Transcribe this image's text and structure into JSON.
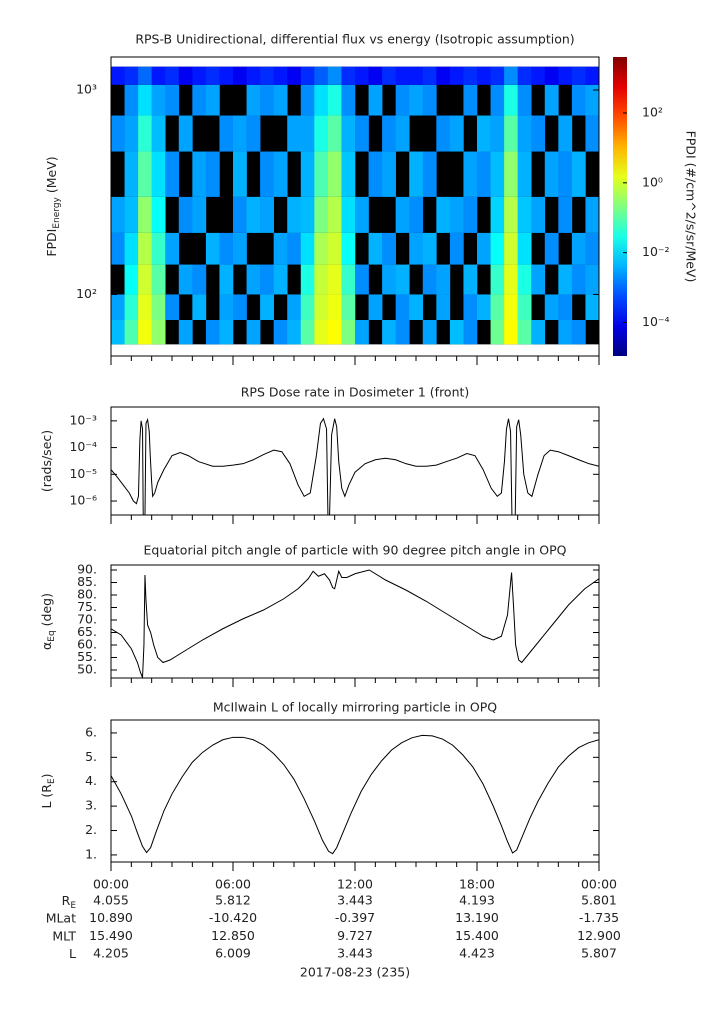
{
  "chart_data": [
    {
      "type": "heatmap",
      "title": "RPS-B  Unidirectional, differential flux vs energy (Isotropic assumption)",
      "ylabel": {
        "text": "FPDI",
        "sub": "Energy",
        "after": " (MeV)"
      },
      "xlim": [
        0,
        24
      ],
      "xticks": [
        0,
        6,
        12,
        18,
        24
      ],
      "xminorticks": [
        1,
        2,
        3,
        4,
        5,
        7,
        8,
        9,
        10,
        11,
        13,
        14,
        15,
        16,
        17,
        19,
        20,
        21,
        22,
        23
      ],
      "ylim": [
        50,
        1450
      ],
      "ylog": true,
      "yticks": [
        {
          "value": 100,
          "label": "10²"
        },
        {
          "value": 1000,
          "label": "10³"
        }
      ],
      "x": [
        0,
        0.667,
        1.333,
        2,
        2.667,
        3.333,
        4,
        4.667,
        5.333,
        6,
        6.667,
        7.333,
        8,
        8.667,
        9.333,
        10,
        10.667,
        11.333,
        12,
        12.667,
        13.333,
        14,
        14.667,
        15.333,
        16,
        16.667,
        17.333,
        18,
        18.667,
        19.333,
        20,
        20.667,
        21.333,
        22,
        22.667,
        23.333,
        24
      ],
      "y": [
        57,
        75,
        100,
        140,
        200,
        300,
        500,
        750,
        1060,
        1300
      ],
      "z": [
        [
          0.005,
          0.08,
          2,
          0.3,
          null,
          0.003,
          null,
          0.002,
          0.004,
          null,
          0.003,
          null,
          0.002,
          0.004,
          0.1,
          1.5,
          2.5,
          0.2,
          0.003,
          null,
          0.004,
          0.002,
          null,
          0.003,
          null,
          0.005,
          0.002,
          null,
          0.15,
          2.5,
          0.1,
          0.004,
          null,
          0.003,
          0.002,
          null
        ],
        [
          0.003,
          0.04,
          1.5,
          0.2,
          0.002,
          null,
          0.004,
          null,
          0.003,
          0.002,
          null,
          0.004,
          null,
          0.003,
          0.06,
          1,
          1.8,
          0.1,
          null,
          0.003,
          null,
          0.002,
          0.004,
          null,
          0.003,
          null,
          0.002,
          0.004,
          0.1,
          2,
          0.06,
          null,
          0.003,
          0.002,
          null,
          0.004
        ],
        [
          null,
          0.02,
          1,
          0.1,
          null,
          0.003,
          0.002,
          null,
          0.004,
          null,
          0.003,
          0.002,
          0.004,
          null,
          0.03,
          0.8,
          1.5,
          0.05,
          0.002,
          null,
          0.003,
          0.004,
          null,
          0.002,
          0.003,
          null,
          0.004,
          null,
          0.05,
          1.5,
          0.03,
          0.003,
          null,
          0.004,
          0.002,
          0.003
        ],
        [
          0.002,
          0.01,
          0.6,
          0.05,
          0.003,
          null,
          null,
          0.004,
          0.002,
          0.003,
          null,
          null,
          0.003,
          0.002,
          0.01,
          0.5,
          1,
          0.02,
          null,
          0.004,
          0.002,
          null,
          0.003,
          0.004,
          null,
          0.002,
          null,
          0.003,
          0.02,
          1,
          0.01,
          null,
          0.002,
          null,
          0.003,
          0.002
        ],
        [
          0.003,
          0.005,
          0.3,
          0.02,
          null,
          0.002,
          0.003,
          null,
          null,
          0.002,
          0.004,
          0.003,
          null,
          0.004,
          0.005,
          0.2,
          0.6,
          0.01,
          0.003,
          null,
          null,
          0.003,
          0.002,
          null,
          0.004,
          0.003,
          0.002,
          null,
          0.008,
          0.6,
          0.006,
          0.003,
          null,
          0.002,
          null,
          0.003
        ],
        [
          null,
          0.004,
          0.1,
          0.01,
          0.002,
          null,
          0.003,
          0.002,
          null,
          0.004,
          null,
          0.002,
          0.003,
          null,
          0.004,
          0.08,
          0.3,
          0.006,
          null,
          0.002,
          0.003,
          null,
          0.004,
          0.002,
          null,
          null,
          0.003,
          0.002,
          0.005,
          0.3,
          0.004,
          null,
          0.003,
          0.002,
          0.004,
          null
        ],
        [
          0.002,
          0.003,
          0.04,
          0.005,
          null,
          0.003,
          null,
          null,
          0.002,
          0.003,
          0.002,
          null,
          null,
          0.003,
          0.003,
          0.03,
          0.1,
          0.004,
          0.002,
          null,
          0.002,
          0.003,
          null,
          null,
          0.002,
          0.003,
          null,
          0.004,
          0.003,
          0.1,
          0.003,
          0.002,
          null,
          0.003,
          null,
          0.002
        ],
        [
          null,
          0.002,
          0.01,
          0.003,
          0.002,
          null,
          0.002,
          0.003,
          null,
          null,
          0.003,
          0.002,
          0.003,
          null,
          0.002,
          0.01,
          0.03,
          0.002,
          null,
          0.003,
          null,
          0.002,
          0.003,
          0.002,
          null,
          null,
          0.002,
          null,
          0.002,
          0.03,
          0.002,
          null,
          0.003,
          null,
          0.002,
          0.003
        ],
        [
          0.0002,
          0.0003,
          0.001,
          0.0002,
          0.0003,
          0.0001,
          0.0002,
          0.0003,
          0.0002,
          0.0001,
          0.0002,
          0.0003,
          0.0002,
          0.0001,
          0.0003,
          0.0008,
          0.002,
          0.0003,
          0.0002,
          0.0001,
          0.0003,
          0.0002,
          0.0002,
          0.0003,
          0.0001,
          0.0002,
          0.0003,
          0.0002,
          0.0003,
          0.002,
          0.0003,
          0.0002,
          0.0001,
          0.0002,
          0.0003,
          0.0002
        ]
      ],
      "colorbar": {
        "label": "FPDI (#/cm^2/s/sr/MeV)",
        "colormap": "jet",
        "clim": [
          1.1e-05,
          4000
        ],
        "ticks": [
          {
            "value": 0.0001,
            "label": "10⁻⁴"
          },
          {
            "value": 0.01,
            "label": "10⁻²"
          },
          {
            "value": 1,
            "label": "10⁰"
          },
          {
            "value": 100,
            "label": "10²"
          }
        ]
      }
    },
    {
      "type": "line",
      "title": "RPS  Dose rate in Dosimeter 1 (front)",
      "ylabel": {
        "text": "(rads/sec)"
      },
      "xlim": [
        0,
        24
      ],
      "xticks": [
        0,
        6,
        12,
        18,
        24
      ],
      "xminorticks": [
        1,
        2,
        3,
        4,
        5,
        7,
        8,
        9,
        10,
        11,
        13,
        14,
        15,
        16,
        17,
        19,
        20,
        21,
        22,
        23
      ],
      "ylim": [
        3e-07,
        0.0033
      ],
      "ylog": true,
      "yticks": [
        {
          "value": 1e-06,
          "label": "10⁻⁶"
        },
        {
          "value": 1e-05,
          "label": "10⁻⁵"
        },
        {
          "value": 0.0001,
          "label": "10⁻⁴"
        },
        {
          "value": 0.001,
          "label": "10⁻³"
        }
      ],
      "series": [
        {
          "color": "#000000",
          "x": [
            0,
            0.3,
            0.6,
            0.9,
            1.1,
            1.25,
            1.35,
            1.42,
            1.48,
            1.55,
            1.6,
            1.65,
            1.72,
            1.8,
            1.88,
            1.93,
            2.0,
            2.05,
            2.15,
            2.3,
            2.6,
            3.0,
            3.4,
            3.8,
            4.3,
            5,
            5.5,
            6,
            6.5,
            7,
            7.5,
            8,
            8.4,
            8.8,
            9.2,
            9.5,
            9.8,
            10.1,
            10.3,
            10.45,
            10.6,
            10.7,
            10.85,
            11.0,
            11.1,
            11.2,
            11.35,
            11.5,
            11.7,
            12,
            12.5,
            13,
            13.5,
            14,
            14.5,
            15,
            15.5,
            16,
            16.5,
            17,
            17.5,
            17.9,
            18.3,
            18.7,
            19.0,
            19.2,
            19.35,
            19.45,
            19.55,
            19.65,
            19.75,
            19.85,
            19.95,
            20.05,
            20.15,
            20.3,
            20.5,
            20.7,
            21,
            21.3,
            21.6,
            22,
            22.5,
            23,
            23.5,
            24
          ],
          "values": [
            1.5e-05,
            8e-06,
            4e-06,
            2e-06,
            1e-06,
            8e-07,
            1.5e-06,
            0.0002,
            0.001,
            0.0005,
            1e-08,
            1e-08,
            0.0008,
            0.0011,
            0.0004,
            5e-05,
            5e-06,
            1.5e-06,
            2e-06,
            5e-06,
            1.5e-05,
            5e-05,
            6.5e-05,
            5e-05,
            3e-05,
            2e-05,
            2e-05,
            2.2e-05,
            2.5e-05,
            3.5e-05,
            5.5e-05,
            8e-05,
            7e-05,
            2.5e-05,
            4e-06,
            1.5e-06,
            2e-06,
            5e-05,
            0.0008,
            0.0012,
            0.0005,
            1e-08,
            0.0003,
            0.0012,
            0.0006,
            3e-05,
            3e-06,
            1.5e-06,
            4e-06,
            1.2e-05,
            2.5e-05,
            3.5e-05,
            4e-05,
            3.5e-05,
            2.5e-05,
            2e-05,
            2e-05,
            2.2e-05,
            3e-05,
            4e-05,
            6e-05,
            5e-05,
            1.5e-05,
            3e-06,
            1.5e-06,
            2e-06,
            3e-05,
            0.0005,
            0.0012,
            0.0004,
            1e-08,
            1e-08,
            0.0006,
            0.0011,
            0.0003,
            1e-05,
            2e-06,
            1.5e-06,
            1e-05,
            5e-05,
            8e-05,
            7e-05,
            5e-05,
            3.5e-05,
            2.5e-05,
            2e-05
          ]
        }
      ]
    },
    {
      "type": "line",
      "title": "Equatorial pitch angle of particle with 90 degree pitch angle in OPQ",
      "ylabel": {
        "text": "α",
        "sub": "Eq",
        "after": " (deg)"
      },
      "xlim": [
        0,
        24
      ],
      "xticks": [
        0,
        6,
        12,
        18,
        24
      ],
      "xminorticks": [
        1,
        2,
        3,
        4,
        5,
        7,
        8,
        9,
        10,
        11,
        13,
        14,
        15,
        16,
        17,
        19,
        20,
        21,
        22,
        23
      ],
      "ylim": [
        46.8,
        92
      ],
      "yticks": [
        {
          "value": 50,
          "label": "50."
        },
        {
          "value": 55,
          "label": "55."
        },
        {
          "value": 60,
          "label": "60."
        },
        {
          "value": 65,
          "label": "65."
        },
        {
          "value": 70,
          "label": "70."
        },
        {
          "value": 75,
          "label": "75."
        },
        {
          "value": 80,
          "label": "80."
        },
        {
          "value": 85,
          "label": "85."
        },
        {
          "value": 90,
          "label": "90."
        }
      ],
      "series": [
        {
          "color": "#000000",
          "x": [
            0,
            0.5,
            1.0,
            1.3,
            1.45,
            1.55,
            1.62,
            1.67,
            1.72,
            1.8,
            1.95,
            2.1,
            2.3,
            2.56,
            2.9,
            3.5,
            4.5,
            5.5,
            6.5,
            7.5,
            8.5,
            9.2,
            9.7,
            9.94,
            10.2,
            10.5,
            10.75,
            10.9,
            11.0,
            11.1,
            11.2,
            11.35,
            11.6,
            12.0,
            12.7,
            13.5,
            14.5,
            15.5,
            16.5,
            17.5,
            18.3,
            18.8,
            19.2,
            19.5,
            19.7,
            19.8,
            19.9,
            20.05,
            20.2,
            20.5,
            21,
            21.7,
            22.5,
            23.3,
            24
          ],
          "values": [
            66.5,
            64,
            58.5,
            53,
            49,
            47,
            60,
            88,
            78,
            68,
            65,
            60,
            55,
            53,
            54,
            57,
            62,
            66.5,
            70.5,
            74,
            78.5,
            82.5,
            86.5,
            89.5,
            87.5,
            88.5,
            86,
            83,
            82.5,
            86,
            89.5,
            87,
            87,
            88.5,
            90,
            86,
            82,
            77.5,
            72.5,
            67.5,
            63.5,
            62,
            63.5,
            72,
            89,
            75,
            60,
            54,
            53,
            56,
            61,
            68,
            76,
            82.5,
            86.5
          ]
        }
      ]
    },
    {
      "type": "line",
      "title": "McIlwain L of locally mirroring particle in OPQ",
      "ylabel": {
        "text": "L (R",
        "sub": "E",
        "after": ")"
      },
      "xlim": [
        0,
        24
      ],
      "xticks": [
        {
          "value": 0,
          "label": "00:00"
        },
        {
          "value": 6,
          "label": "06:00"
        },
        {
          "value": 12,
          "label": "12:00"
        },
        {
          "value": 18,
          "label": "18:00"
        },
        {
          "value": 24,
          "label": "00:00"
        }
      ],
      "xminorticks": [
        1,
        2,
        3,
        4,
        5,
        7,
        8,
        9,
        10,
        11,
        13,
        14,
        15,
        16,
        17,
        19,
        20,
        21,
        22,
        23
      ],
      "ylim": [
        0.71,
        6.53
      ],
      "yticks": [
        {
          "value": 1,
          "label": "1."
        },
        {
          "value": 2,
          "label": "2."
        },
        {
          "value": 3,
          "label": "3."
        },
        {
          "value": 4,
          "label": "4."
        },
        {
          "value": 5,
          "label": "5."
        },
        {
          "value": 6,
          "label": "6."
        }
      ],
      "series": [
        {
          "color": "#000000",
          "x": [
            0,
            0.5,
            1.0,
            1.3,
            1.55,
            1.75,
            1.95,
            2.2,
            2.6,
            3.0,
            3.5,
            4.0,
            4.5,
            5.0,
            5.5,
            6.0,
            6.5,
            7.0,
            7.5,
            8.0,
            8.5,
            9.0,
            9.5,
            10.0,
            10.4,
            10.7,
            10.9,
            11.1,
            11.4,
            11.8,
            12.3,
            12.8,
            13.3,
            13.8,
            14.3,
            14.8,
            15.3,
            15.8,
            16.3,
            16.8,
            17.3,
            17.8,
            18.3,
            18.8,
            19.2,
            19.5,
            19.75,
            19.95,
            20.2,
            20.6,
            21.0,
            21.5,
            22.0,
            22.5,
            23.0,
            23.5,
            24
          ],
          "values": [
            4.25,
            3.5,
            2.6,
            1.9,
            1.35,
            1.1,
            1.3,
            1.9,
            2.8,
            3.5,
            4.2,
            4.8,
            5.2,
            5.5,
            5.72,
            5.82,
            5.82,
            5.72,
            5.5,
            5.15,
            4.7,
            4.1,
            3.3,
            2.4,
            1.6,
            1.15,
            1.05,
            1.3,
            1.9,
            2.7,
            3.6,
            4.3,
            4.85,
            5.3,
            5.6,
            5.8,
            5.9,
            5.88,
            5.75,
            5.5,
            5.1,
            4.6,
            3.9,
            3.0,
            2.2,
            1.55,
            1.08,
            1.2,
            1.7,
            2.5,
            3.2,
            3.95,
            4.6,
            5.05,
            5.4,
            5.6,
            5.72
          ]
        }
      ]
    }
  ],
  "ephemeris": {
    "rows": [
      {
        "label": "R",
        "label_sub": "E",
        "values": [
          "4.055",
          "5.812",
          "3.443",
          "4.193",
          "5.801"
        ]
      },
      {
        "label": "MLat",
        "values": [
          "10.890",
          "-10.420",
          "-0.397",
          "13.190",
          "-1.735"
        ]
      },
      {
        "label": "MLT",
        "values": [
          "15.490",
          "12.850",
          "9.727",
          "15.400",
          "12.900"
        ]
      },
      {
        "label": "L",
        "values": [
          "4.205",
          "6.009",
          "3.443",
          "4.423",
          "5.807"
        ]
      }
    ]
  },
  "date_label": "2017-08-23 (235)"
}
